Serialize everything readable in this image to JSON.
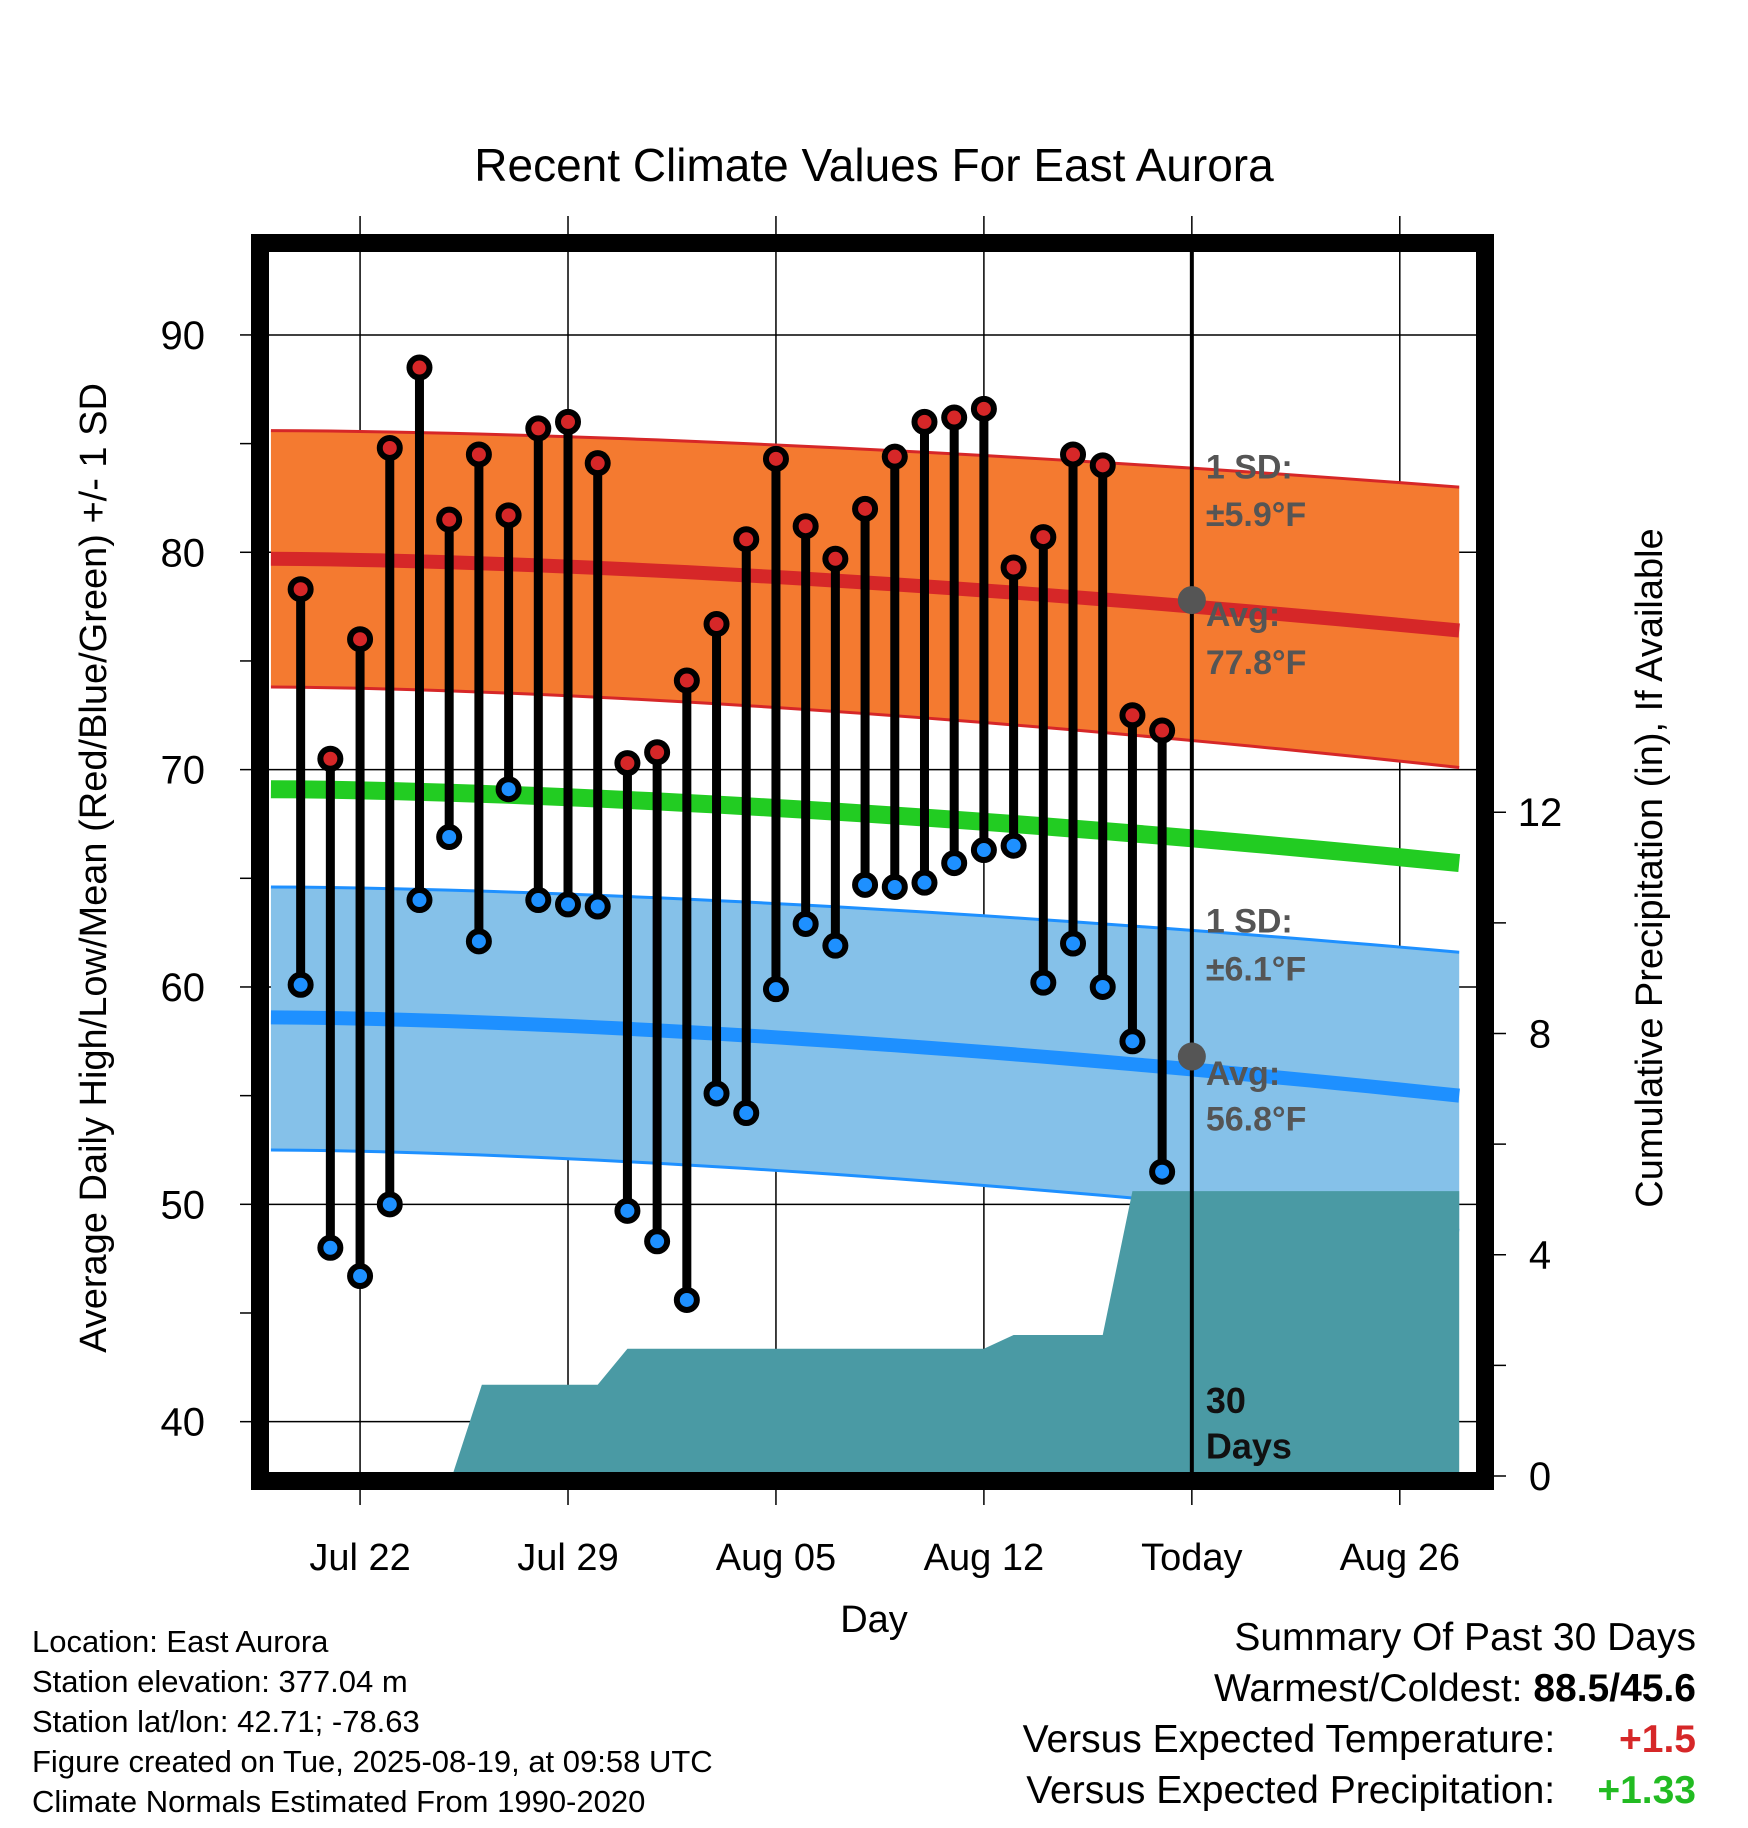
{
  "chart_data": {
    "type": "line",
    "title": "Recent Climate Values For East Aurora",
    "xlabel": "Day",
    "ylabel": "Average Daily High/Low/Mean (Red/Blue/Green) +/- 1 SD",
    "y2label": "Cumulative Precipitation (in), If Available",
    "ylim": [
      37.5,
      94
    ],
    "y2lim": [
      0,
      22.2
    ],
    "yticks": [
      40,
      50,
      60,
      70,
      80,
      90
    ],
    "y2ticks": [
      0,
      4,
      8,
      12
    ],
    "xticks": [
      {
        "label": "Jul 22",
        "day": 2
      },
      {
        "label": "Jul 29",
        "day": 9
      },
      {
        "label": "Aug 05",
        "day": 16
      },
      {
        "label": "Aug 12",
        "day": 23
      },
      {
        "label": "Today",
        "day": 30
      },
      {
        "label": "Aug 26",
        "day": 37
      }
    ],
    "xlim": [
      -1.2,
      39.7
    ],
    "today_day": 30,
    "days": [
      0,
      1,
      2,
      3,
      4,
      5,
      6,
      7,
      8,
      9,
      10,
      11,
      12,
      13,
      14,
      15,
      16,
      17,
      18,
      19,
      20,
      21,
      22,
      23,
      24,
      25,
      26,
      27,
      28,
      29
    ],
    "series": [
      {
        "name": "High",
        "color": "#d62728",
        "values": [
          78.3,
          70.5,
          76.0,
          84.8,
          88.5,
          81.5,
          84.5,
          81.7,
          85.7,
          86.0,
          84.1,
          70.3,
          70.8,
          74.1,
          76.7,
          80.6,
          84.3,
          81.2,
          79.7,
          82.0,
          84.4,
          86.0,
          86.2,
          86.6,
          79.3,
          80.7,
          84.5,
          84.0,
          72.5,
          71.8
        ]
      },
      {
        "name": "Low",
        "color": "#1e90ff",
        "values": [
          60.1,
          48.0,
          46.7,
          50.0,
          64.0,
          66.9,
          62.1,
          69.1,
          64.0,
          63.8,
          63.7,
          49.7,
          48.3,
          45.6,
          55.1,
          54.2,
          59.9,
          62.9,
          61.9,
          64.7,
          64.6,
          64.8,
          65.7,
          66.3,
          66.5,
          60.2,
          62.0,
          60.0,
          57.5,
          51.5
        ]
      }
    ],
    "normals": {
      "high_mean": {
        "days": [
          -1,
          39
        ],
        "values": [
          79.7,
          76.4
        ],
        "color": "#d62728"
      },
      "high_sd_band": {
        "days": [
          -1,
          39
        ],
        "upper": [
          85.6,
          83.0
        ],
        "lower": [
          73.8,
          70.1
        ],
        "color": "#f47a30"
      },
      "low_mean": {
        "days": [
          -1,
          39
        ],
        "values": [
          58.6,
          55.0
        ],
        "color": "#1e90ff"
      },
      "low_sd_band": {
        "days": [
          -1,
          39
        ],
        "upper": [
          64.6,
          61.6
        ],
        "lower": [
          52.5,
          48.8
        ],
        "color": "#85c1e9"
      },
      "mean": {
        "days": [
          -1,
          39
        ],
        "values": [
          69.1,
          65.7
        ],
        "color": "#22cc22"
      }
    },
    "precipitation": {
      "color": "#4a9aa4",
      "steps": [
        {
          "day": 5.1,
          "value": 0
        },
        {
          "day": 6.1,
          "value": 1.65
        },
        {
          "day": 8.9,
          "value": 1.65
        },
        {
          "day": 10.0,
          "value": 1.65
        },
        {
          "day": 11.0,
          "value": 2.3
        },
        {
          "day": 23.0,
          "value": 2.3
        },
        {
          "day": 24.0,
          "value": 2.55
        },
        {
          "day": 27.0,
          "value": 2.55
        },
        {
          "day": 28.0,
          "value": 5.15
        },
        {
          "day": 39.0,
          "value": 5.15
        }
      ]
    },
    "annotations": {
      "high_sd": "1 SD:",
      "high_sd_value": "±5.9°F",
      "high_avg": "Avg:",
      "high_avg_value": "77.8°F",
      "high_avg_marker": 77.8,
      "low_sd": "1 SD:",
      "low_sd_value": "±6.1°F",
      "low_avg": "Avg:",
      "low_avg_value": "56.8°F",
      "low_avg_marker": 56.8,
      "period_count": "30",
      "period_unit": "Days"
    }
  },
  "info": {
    "location": "Location: East Aurora",
    "elevation": "Station elevation: 377.04 m",
    "latlon": "Station lat/lon: 42.71; -78.63",
    "created": "Figure created on Tue, 2025-08-19, at 09:58 UTC",
    "normals": "Climate Normals Estimated From 1990-2020"
  },
  "summary": {
    "title": "Summary Of Past 30 Days",
    "warm_cold_label": "Warmest/Coldest:",
    "warm_cold_value": "88.5/45.6",
    "temp_label": "Versus Expected Temperature:",
    "temp_value": "+1.5",
    "temp_color": "#d62728",
    "precip_label": "Versus Expected Precipitation:",
    "precip_value": "+1.33",
    "precip_color": "#22bb22"
  }
}
